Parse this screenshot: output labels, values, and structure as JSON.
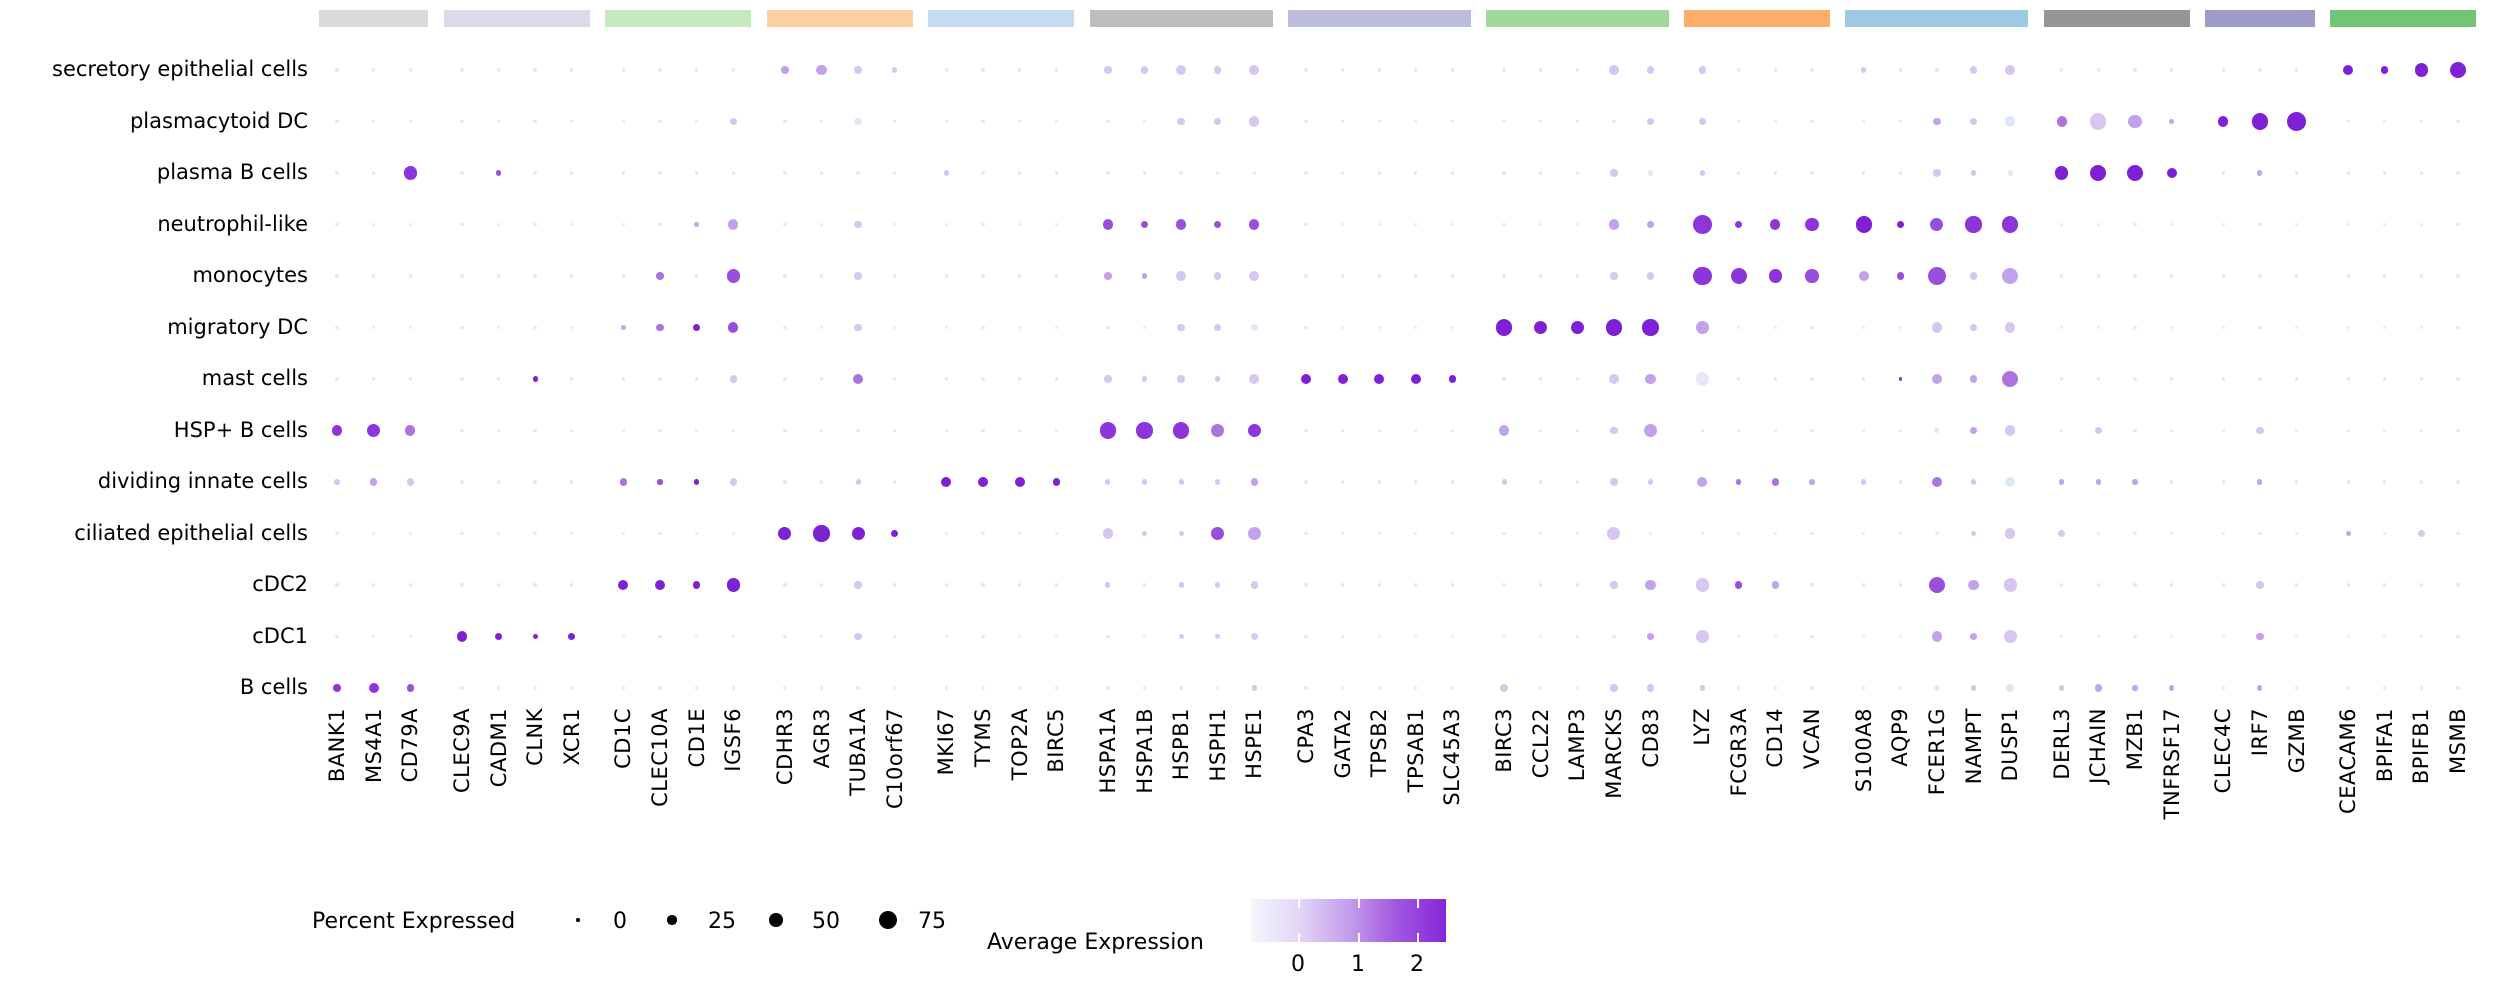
{
  "chart_data": {
    "type": "scatter",
    "subtype": "dotplot-gene-expression",
    "title": "",
    "cell_types": [
      "secretory epithelial cells",
      "plasmacytoid DC",
      "plasma B cells",
      "neutrophil-like",
      "monocytes",
      "migratory DC",
      "mast cells",
      "HSP+ B cells",
      "dividing innate cells",
      "ciliated epithelial cells",
      "cDC2",
      "cDC1",
      "B cells"
    ],
    "gene_groups": [
      {
        "band_color": "#d9d9d9",
        "genes": [
          "BANK1",
          "MS4A1",
          "CD79A"
        ]
      },
      {
        "band_color": "#dadaeb",
        "genes": [
          "CLEC9A",
          "CADM1",
          "CLNK",
          "XCR1"
        ]
      },
      {
        "band_color": "#c7e9c0",
        "genes": [
          "CD1C",
          "CLEC10A",
          "CD1E",
          "IGSF6"
        ]
      },
      {
        "band_color": "#fdd0a2",
        "genes": [
          "CDHR3",
          "AGR3",
          "TUBA1A",
          "C10orf67"
        ]
      },
      {
        "band_color": "#c6dbef",
        "genes": [
          "MKI67",
          "TYMS",
          "TOP2A",
          "BIRC5"
        ]
      },
      {
        "band_color": "#bdbdbd",
        "genes": [
          "HSPA1A",
          "HSPA1B",
          "HSPB1",
          "HSPH1",
          "HSPE1"
        ]
      },
      {
        "band_color": "#bcbddc",
        "genes": [
          "CPA3",
          "GATA2",
          "TPSB2",
          "TPSAB1",
          "SLC45A3"
        ]
      },
      {
        "band_color": "#a1d99b",
        "genes": [
          "BIRC3",
          "CCL22",
          "LAMP3",
          "MARCKS",
          "CD83"
        ]
      },
      {
        "band_color": "#fdae6b",
        "genes": [
          "LYZ",
          "FCGR3A",
          "CD14",
          "VCAN"
        ]
      },
      {
        "band_color": "#9ecae1",
        "genes": [
          "S100A8",
          "AQP9",
          "FCER1G",
          "NAMPT",
          "DUSP1"
        ]
      },
      {
        "band_color": "#969696",
        "genes": [
          "DERL3",
          "JCHAIN",
          "MZB1",
          "TNFRSF17"
        ]
      },
      {
        "band_color": "#9e9ac8",
        "genes": [
          "CLEC4C",
          "IRF7",
          "GZMB"
        ]
      },
      {
        "band_color": "#74c476",
        "genes": [
          "CEACAM6",
          "BPIFA1",
          "BPIFB1",
          "MSMB"
        ]
      }
    ],
    "size_levels_radius_px": [
      1.7,
      2.6,
      3.7,
      5.1,
      6.6,
      8.1,
      9.4,
      10.3
    ],
    "size_levels_percent_expressed": [
      3,
      8,
      15,
      30,
      45,
      60,
      75,
      88
    ],
    "expression_colors": {
      "b": "#dde7f8",
      "0": "#e9e6f7",
      "1": "#d6c6f0",
      "2": "#c2a2ea",
      "3": "#aa73e0",
      "4": "#9850dc",
      "5": "#8b35da",
      "6": "#7e21d5"
    },
    "expression_value_for_color": {
      "b": -0.5,
      "0": -0.1,
      "1": 0.4,
      "2": 0.9,
      "3": 1.4,
      "4": 1.8,
      "5": 2.2,
      "6": 2.5
    },
    "dots": {
      "secretory epithelial cells": {
        "11": [
          2,
          "2"
        ],
        "12": [
          3,
          "2"
        ],
        "13": [
          2,
          "1"
        ],
        "14": [
          1,
          "1"
        ],
        "19": [
          2,
          "1"
        ],
        "20": [
          2,
          "1"
        ],
        "21": [
          3,
          "1"
        ],
        "22": [
          2,
          "1"
        ],
        "23": [
          3,
          "1"
        ],
        "32": [
          3,
          "1"
        ],
        "33": [
          2,
          "1"
        ],
        "34": [
          2,
          "1"
        ],
        "38": [
          1,
          "1"
        ],
        "41": [
          2,
          "1"
        ],
        "42": [
          3,
          "1"
        ],
        "50": [
          3,
          "6"
        ],
        "51": [
          2,
          "6"
        ],
        "52": [
          4,
          "6"
        ],
        "53": [
          5,
          "6"
        ]
      },
      "plasmacytoid DC": {
        "10": [
          2,
          "1"
        ],
        "13": [
          2,
          "b"
        ],
        "21": [
          2,
          "1"
        ],
        "22": [
          2,
          "1"
        ],
        "23": [
          3,
          "1"
        ],
        "33": [
          2,
          "1"
        ],
        "34": [
          2,
          "1"
        ],
        "40": [
          2,
          "2"
        ],
        "41": [
          2,
          "1"
        ],
        "42": [
          3,
          "b"
        ],
        "43": [
          3,
          "3"
        ],
        "44": [
          5,
          "1"
        ],
        "45": [
          4,
          "2"
        ],
        "46": [
          1,
          "2"
        ],
        "47": [
          3,
          "6"
        ],
        "48": [
          5,
          "6"
        ],
        "49": [
          6,
          "6"
        ]
      },
      "plasma B cells": {
        "2": [
          4,
          "5"
        ],
        "4": [
          1,
          "4"
        ],
        "15": [
          1,
          "1"
        ],
        "32": [
          2,
          "1"
        ],
        "33": [
          1,
          "b"
        ],
        "34": [
          1,
          "1"
        ],
        "40": [
          2,
          "1"
        ],
        "41": [
          1,
          "1"
        ],
        "42": [
          1,
          "b"
        ],
        "43": [
          4,
          "6"
        ],
        "44": [
          5,
          "6"
        ],
        "45": [
          5,
          "6"
        ],
        "46": [
          3,
          "6"
        ],
        "48": [
          1,
          "2"
        ]
      },
      "neutrophil-like": {
        "9": [
          1,
          "2"
        ],
        "10": [
          3,
          "2"
        ],
        "13": [
          2,
          "1"
        ],
        "19": [
          3,
          "4"
        ],
        "20": [
          2,
          "4"
        ],
        "21": [
          3,
          "4"
        ],
        "22": [
          2,
          "4"
        ],
        "23": [
          3,
          "4"
        ],
        "32": [
          3,
          "2"
        ],
        "33": [
          2,
          "2"
        ],
        "34": [
          6,
          "5"
        ],
        "35": [
          2,
          "5"
        ],
        "36": [
          3,
          "5"
        ],
        "37": [
          4,
          "5"
        ],
        "38": [
          5,
          "6"
        ],
        "39": [
          2,
          "6"
        ],
        "40": [
          4,
          "4"
        ],
        "41": [
          5,
          "5"
        ],
        "42": [
          5,
          "5"
        ]
      },
      "monocytes": {
        "8": [
          2,
          "3"
        ],
        "10": [
          4,
          "4"
        ],
        "13": [
          2,
          "1"
        ],
        "19": [
          2,
          "2"
        ],
        "20": [
          1,
          "2"
        ],
        "21": [
          3,
          "1"
        ],
        "22": [
          2,
          "1"
        ],
        "23": [
          3,
          "1"
        ],
        "32": [
          2,
          "1"
        ],
        "33": [
          2,
          "1"
        ],
        "34": [
          6,
          "5"
        ],
        "35": [
          5,
          "5"
        ],
        "36": [
          4,
          "5"
        ],
        "37": [
          4,
          "4"
        ],
        "38": [
          3,
          "2"
        ],
        "39": [
          2,
          "4"
        ],
        "40": [
          6,
          "4"
        ],
        "41": [
          2,
          "1"
        ],
        "42": [
          5,
          "2"
        ]
      },
      "migratory DC": {
        "7": [
          1,
          "2"
        ],
        "8": [
          2,
          "3"
        ],
        "9": [
          2,
          "6"
        ],
        "10": [
          3,
          "4"
        ],
        "13": [
          2,
          "1"
        ],
        "21": [
          2,
          "1"
        ],
        "22": [
          2,
          "1"
        ],
        "23": [
          2,
          "b"
        ],
        "29": [
          5,
          "6"
        ],
        "30": [
          4,
          "6"
        ],
        "31": [
          4,
          "6"
        ],
        "32": [
          5,
          "6"
        ],
        "33": [
          5,
          "6"
        ],
        "34": [
          4,
          "2"
        ],
        "40": [
          3,
          "1"
        ],
        "41": [
          2,
          "1"
        ],
        "42": [
          3,
          "1"
        ]
      },
      "mast cells": {
        "5": [
          1,
          "6"
        ],
        "10": [
          2,
          "1"
        ],
        "13": [
          3,
          "3"
        ],
        "19": [
          2,
          "1"
        ],
        "20": [
          1,
          "1"
        ],
        "21": [
          2,
          "1"
        ],
        "22": [
          1,
          "1"
        ],
        "23": [
          3,
          "1"
        ],
        "24": [
          3,
          "6"
        ],
        "25": [
          3,
          "6"
        ],
        "26": [
          3,
          "6"
        ],
        "27": [
          3,
          "6"
        ],
        "28": [
          2,
          "6"
        ],
        "32": [
          3,
          "1"
        ],
        "33": [
          3,
          "2"
        ],
        "34": [
          4,
          "0"
        ],
        "39": [
          0,
          "5"
        ],
        "40": [
          3,
          "2"
        ],
        "41": [
          2,
          "2"
        ],
        "42": [
          5,
          "3"
        ]
      },
      "HSP+ B cells": {
        "0": [
          3,
          "5"
        ],
        "1": [
          4,
          "5"
        ],
        "2": [
          3,
          "3"
        ],
        "19": [
          5,
          "5"
        ],
        "20": [
          5,
          "5"
        ],
        "21": [
          5,
          "5"
        ],
        "22": [
          4,
          "3"
        ],
        "23": [
          4,
          "5"
        ],
        "29": [
          3,
          "2"
        ],
        "32": [
          2,
          "1"
        ],
        "33": [
          4,
          "2"
        ],
        "40": [
          1,
          "b"
        ],
        "41": [
          2,
          "2"
        ],
        "42": [
          3,
          "1"
        ],
        "44": [
          2,
          "1"
        ],
        "48": [
          2,
          "1"
        ]
      },
      "dividing innate cells": {
        "0": [
          1,
          "1"
        ],
        "1": [
          2,
          "2"
        ],
        "2": [
          2,
          "1"
        ],
        "7": [
          2,
          "3"
        ],
        "8": [
          1,
          "4"
        ],
        "9": [
          1,
          "6"
        ],
        "10": [
          2,
          "1"
        ],
        "13": [
          1,
          "1"
        ],
        "15": [
          3,
          "6"
        ],
        "16": [
          3,
          "6"
        ],
        "17": [
          3,
          "6"
        ],
        "18": [
          2,
          "6"
        ],
        "19": [
          1,
          "1"
        ],
        "20": [
          1,
          "1"
        ],
        "21": [
          1,
          "1"
        ],
        "22": [
          1,
          "1"
        ],
        "23": [
          2,
          "2"
        ],
        "29": [
          1,
          "1"
        ],
        "32": [
          2,
          "1"
        ],
        "33": [
          1,
          "1"
        ],
        "34": [
          3,
          "2"
        ],
        "35": [
          1,
          "3"
        ],
        "36": [
          2,
          "3"
        ],
        "37": [
          1,
          "2"
        ],
        "38": [
          1,
          "1"
        ],
        "40": [
          3,
          "3"
        ],
        "41": [
          1,
          "1"
        ],
        "42": [
          3,
          "b"
        ],
        "43": [
          1,
          "2"
        ],
        "44": [
          1,
          "2"
        ],
        "45": [
          1,
          "2"
        ],
        "48": [
          1,
          "2"
        ]
      },
      "ciliated epithelial cells": {
        "11": [
          4,
          "6"
        ],
        "12": [
          5,
          "6"
        ],
        "13": [
          4,
          "6"
        ],
        "14": [
          2,
          "6"
        ],
        "19": [
          3,
          "1"
        ],
        "20": [
          1,
          "1"
        ],
        "21": [
          1,
          "1"
        ],
        "22": [
          4,
          "4"
        ],
        "23": [
          4,
          "2"
        ],
        "32": [
          4,
          "1"
        ],
        "41": [
          1,
          "1"
        ],
        "42": [
          3,
          "1"
        ],
        "43": [
          2,
          "1"
        ],
        "50": [
          1,
          "2"
        ],
        "52": [
          2,
          "1"
        ]
      },
      "cDC2": {
        "7": [
          3,
          "6"
        ],
        "8": [
          3,
          "6"
        ],
        "9": [
          2,
          "6"
        ],
        "10": [
          4,
          "6"
        ],
        "13": [
          2,
          "1"
        ],
        "19": [
          1,
          "1"
        ],
        "21": [
          1,
          "1"
        ],
        "22": [
          1,
          "1"
        ],
        "23": [
          2,
          "1"
        ],
        "32": [
          2,
          "1"
        ],
        "33": [
          3,
          "2"
        ],
        "34": [
          4,
          "1"
        ],
        "35": [
          2,
          "4"
        ],
        "36": [
          2,
          "2"
        ],
        "40": [
          5,
          "4"
        ],
        "41": [
          3,
          "2"
        ],
        "42": [
          4,
          "1"
        ],
        "48": [
          2,
          "1"
        ]
      },
      "cDC1": {
        "3": [
          3,
          "6"
        ],
        "4": [
          2,
          "6"
        ],
        "5": [
          1,
          "6"
        ],
        "6": [
          2,
          "6"
        ],
        "13": [
          2,
          "1"
        ],
        "21": [
          1,
          "1"
        ],
        "22": [
          1,
          "1"
        ],
        "23": [
          2,
          "1"
        ],
        "33": [
          2,
          "2"
        ],
        "34": [
          4,
          "1"
        ],
        "40": [
          3,
          "2"
        ],
        "41": [
          2,
          "2"
        ],
        "42": [
          4,
          "1"
        ],
        "48": [
          2,
          "2"
        ]
      },
      "B cells": {
        "0": [
          2,
          "5"
        ],
        "1": [
          3,
          "5"
        ],
        "2": [
          2,
          "4"
        ],
        "23": [
          1,
          "1"
        ],
        "29": [
          2,
          "1"
        ],
        "32": [
          2,
          "1"
        ],
        "33": [
          2,
          "1"
        ],
        "34": [
          1,
          "1"
        ],
        "40": [
          1,
          "b"
        ],
        "41": [
          1,
          "1"
        ],
        "42": [
          2,
          "b"
        ],
        "43": [
          1,
          "1"
        ],
        "44": [
          2,
          "2"
        ],
        "45": [
          1,
          "2"
        ],
        "46": [
          1,
          "2"
        ],
        "48": [
          1,
          "2"
        ]
      }
    },
    "legend": {
      "percent_label": "Percent Expressed",
      "percent_items": [
        {
          "label": "0",
          "r": 1.8
        },
        {
          "label": "25",
          "r": 4.6
        },
        {
          "label": "50",
          "r": 6.8
        },
        {
          "label": "75",
          "r": 9.2
        }
      ],
      "expression_label": "Average Expression",
      "expression_ticks": [
        "0",
        "1",
        "2"
      ],
      "gradient_stops": [
        "#f3f6fd",
        "#e3d5f6",
        "#c59eec",
        "#a156e0",
        "#8526d9"
      ],
      "axis_range": [
        -0.9,
        2.5
      ]
    },
    "layout_hints": {
      "grid": false,
      "legend_position": "bottom",
      "x_tick_rotation": 90
    }
  }
}
